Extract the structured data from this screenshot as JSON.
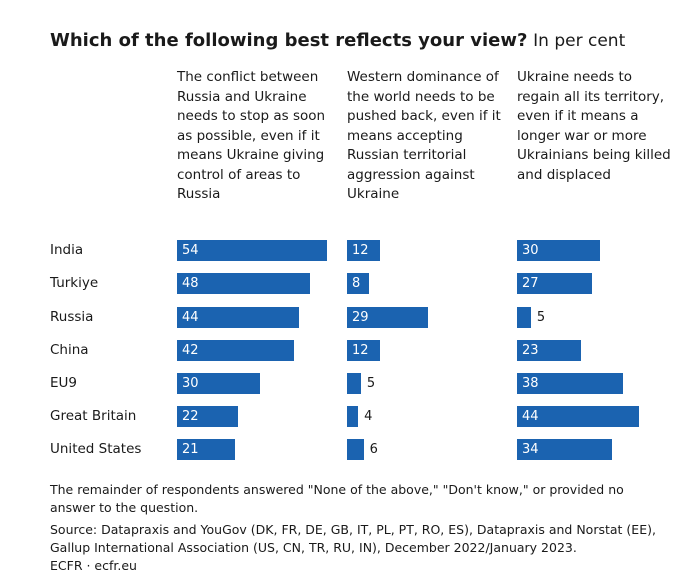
{
  "chart_data": {
    "type": "bar",
    "title": "Which of the following best reflects your view?",
    "subtitle": "In per cent",
    "categories": [
      "India",
      "Turkiye",
      "Russia",
      "China",
      "EU9",
      "Great Britain",
      "United States"
    ],
    "series": [
      {
        "name": "The conflict between Russia and Ukraine needs to stop as soon as possible, even if it means Ukraine giving control of areas to Russia",
        "color": "#1b63b0",
        "values": [
          54,
          48,
          44,
          42,
          30,
          22,
          21
        ]
      },
      {
        "name": "Western dominance of the world needs to be pushed back, even if it means accepting Russian territorial aggression against Ukraine",
        "color": "#1b63b0",
        "values": [
          12,
          8,
          29,
          12,
          5,
          4,
          6
        ]
      },
      {
        "name": "Ukraine needs to regain all its territory, even if it means a longer war or more Ukrainians being killed and displaced",
        "color": "#1b63b0",
        "values": [
          30,
          27,
          5,
          23,
          38,
          44,
          34
        ]
      }
    ],
    "note": "The remainder of respondents answered \"None of the above,\" \"Don't know,\" or provided no answer to the question.",
    "source": "Source: Datapraxis and YouGov (DK, FR, DE, GB, IT, PL, PT, RO, ES), Datapraxis and Norstat (EE), Gallup International Association (US, CN, TR, RU, IN), December 2022/January 2023.",
    "credit": "ECFR · ecfr.eu"
  }
}
